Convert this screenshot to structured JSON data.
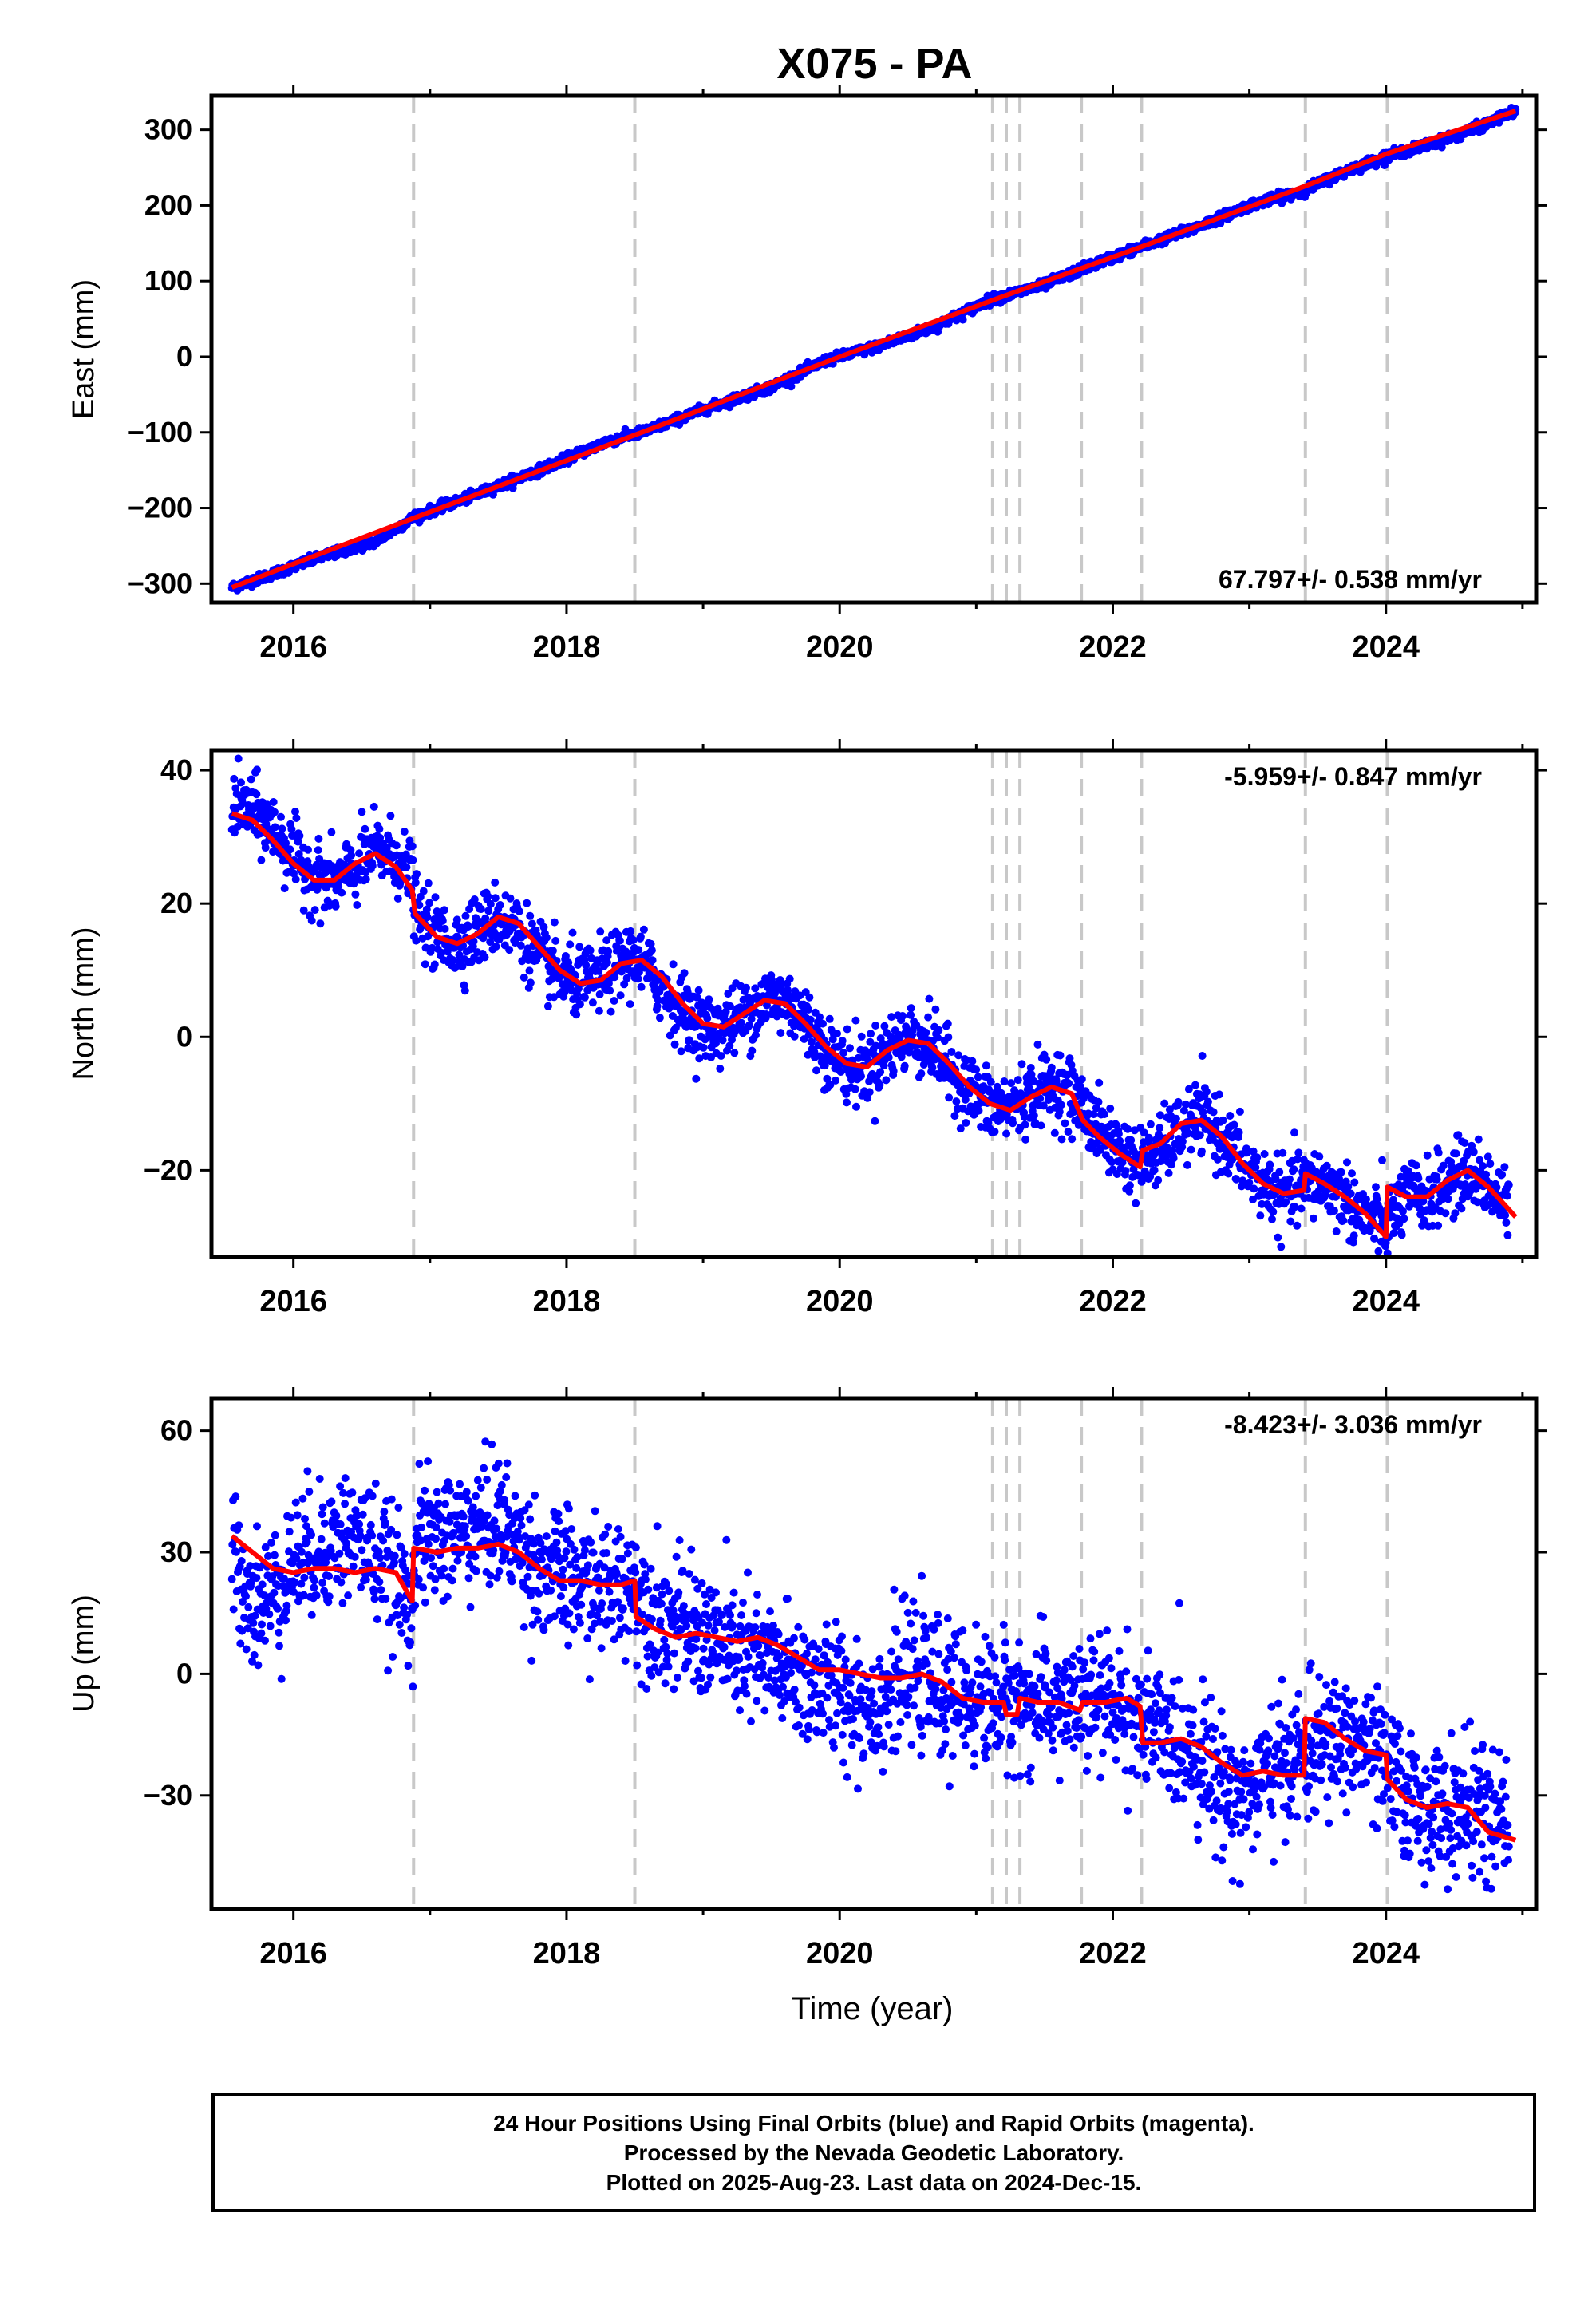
{
  "title": "X075 - PA",
  "colors": {
    "points": "#0000ff",
    "model": "#ff0000",
    "events": "#c8c8c8",
    "frame": "#000000"
  },
  "chart_data": [
    {
      "type": "scatter",
      "panel": "east",
      "title": "X075 - PA",
      "xlabel": "",
      "ylabel": "East (mm)",
      "xlim": [
        2015.4,
        2025.1
      ],
      "ylim": [
        -325,
        345
      ],
      "x_ticks": [
        2016,
        2018,
        2020,
        2022,
        2024
      ],
      "y_ticks": [
        -300,
        -200,
        -100,
        0,
        100,
        200,
        300
      ],
      "y_tick_labels": [
        "−300",
        "−200",
        "−100",
        "0",
        "100",
        "200",
        "300"
      ],
      "rate_label": "67.797+/- 0.538 mm/yr",
      "rate_position": "bottom-right",
      "series": [
        {
          "role": "observed",
          "color": "#0000ff",
          "scatter": 3,
          "x": [
            2015.55,
            2015.8,
            2016.2,
            2016.6,
            2016.9,
            2017.3,
            2017.8,
            2018.3,
            2018.6,
            2019.0,
            2019.5,
            2019.9,
            2020.3,
            2020.7,
            2021.1,
            2021.5,
            2021.8,
            2022.2,
            2022.6,
            2023.0,
            2023.4,
            2023.7,
            2024.0,
            2024.4,
            2024.7,
            2024.95
          ],
          "y": [
            -305,
            -290,
            -265,
            -245,
            -210,
            -185,
            -150,
            -112,
            -97,
            -70,
            -40,
            -5,
            15,
            40,
            75,
            95,
            118,
            145,
            170,
            200,
            220,
            245,
            265,
            285,
            305,
            325
          ]
        }
      ],
      "model": {
        "x": [
          2015.55,
          2016.9,
          2018.55,
          2020.0,
          2021.2,
          2022.25,
          2023.4,
          2024.0,
          2024.95
        ],
        "y": [
          -305,
          -212,
          -100,
          0,
          80,
          148,
          225,
          268,
          325
        ]
      },
      "events": [
        2016.88,
        2018.5,
        2021.12,
        2021.22,
        2021.32,
        2021.77,
        2022.21,
        2023.41,
        2024.01
      ]
    },
    {
      "type": "scatter",
      "panel": "north",
      "title": "",
      "xlabel": "",
      "ylabel": "North (mm)",
      "xlim": [
        2015.4,
        2025.1
      ],
      "ylim": [
        -33,
        43
      ],
      "x_ticks": [
        2016,
        2018,
        2020,
        2022,
        2024
      ],
      "y_ticks": [
        -20,
        0,
        20,
        40
      ],
      "y_tick_labels": [
        "−20",
        "0",
        "20",
        "40"
      ],
      "rate_label": "-5.959+/- 0.847 mm/yr",
      "rate_position": "top-right",
      "series": [
        {
          "role": "observed",
          "color": "#0000ff",
          "scatter": 2.6,
          "x": [
            2015.55,
            2015.7,
            2015.85,
            2016.0,
            2016.15,
            2016.3,
            2016.45,
            2016.6,
            2016.75,
            2016.87,
            2016.9,
            2017.05,
            2017.2,
            2017.35,
            2017.5,
            2017.65,
            2017.8,
            2017.95,
            2018.1,
            2018.25,
            2018.4,
            2018.5,
            2018.6,
            2018.75,
            2018.9,
            2019.05,
            2019.2,
            2019.35,
            2019.5,
            2019.65,
            2019.8,
            2019.95,
            2020.1,
            2020.25,
            2020.4,
            2020.55,
            2020.7,
            2020.85,
            2021.0,
            2021.15,
            2021.3,
            2021.45,
            2021.6,
            2021.75,
            2021.9,
            2022.05,
            2022.2,
            2022.35,
            2022.5,
            2022.65,
            2022.8,
            2022.95,
            2023.1,
            2023.25,
            2023.4,
            2023.55,
            2023.7,
            2023.85,
            2024.0,
            2024.15,
            2024.3,
            2024.45,
            2024.6,
            2024.75,
            2024.9
          ],
          "y": [
            35,
            34,
            31,
            27,
            24,
            23,
            25,
            28,
            27,
            24,
            18,
            15,
            14,
            16,
            18,
            16,
            12,
            9,
            8,
            9,
            11,
            12,
            10,
            6,
            3,
            1,
            2,
            4,
            6,
            5,
            1,
            -3,
            -5,
            -4,
            -1,
            0,
            -2,
            -6,
            -9,
            -11,
            -10,
            -8,
            -7,
            -10,
            -14,
            -17,
            -19,
            -17,
            -14,
            -12,
            -15,
            -19,
            -22,
            -24,
            -22,
            -22,
            -24,
            -27,
            -28,
            -24,
            -24,
            -22,
            -20,
            -22,
            -26
          ]
        }
      ],
      "model": {
        "x": [
          2015.55,
          2015.7,
          2015.85,
          2016.0,
          2016.15,
          2016.3,
          2016.45,
          2016.6,
          2016.75,
          2016.87,
          2016.89,
          2017.05,
          2017.2,
          2017.35,
          2017.5,
          2017.65,
          2017.8,
          2017.95,
          2018.1,
          2018.25,
          2018.4,
          2018.55,
          2018.7,
          2018.85,
          2019.0,
          2019.15,
          2019.3,
          2019.45,
          2019.6,
          2019.75,
          2019.9,
          2020.05,
          2020.2,
          2020.35,
          2020.5,
          2020.65,
          2020.8,
          2020.95,
          2021.1,
          2021.25,
          2021.4,
          2021.55,
          2021.7,
          2021.77,
          2021.78,
          2021.9,
          2022.05,
          2022.2,
          2022.22,
          2022.35,
          2022.5,
          2022.65,
          2022.8,
          2022.95,
          2023.1,
          2023.25,
          2023.4,
          2023.41,
          2023.55,
          2023.7,
          2023.85,
          2024.0,
          2024.01,
          2024.15,
          2024.3,
          2024.45,
          2024.6,
          2024.75,
          2024.95
        ],
        "y": [
          33.5,
          32.5,
          29.5,
          26,
          23.5,
          23.5,
          26,
          27.5,
          25.5,
          22,
          18.5,
          15,
          14,
          15.5,
          18,
          17,
          13.5,
          10,
          8,
          8.5,
          11,
          11.5,
          9,
          5,
          2,
          1.5,
          3.5,
          5.5,
          5,
          2,
          -1.5,
          -4,
          -4.5,
          -2,
          -0.5,
          -1,
          -4,
          -7.5,
          -10,
          -11,
          -9,
          -7.5,
          -8.5,
          -12,
          -12.5,
          -15,
          -17.5,
          -19.5,
          -17,
          -16,
          -13,
          -12.5,
          -15,
          -19,
          -22,
          -23.5,
          -23,
          -20.5,
          -22,
          -24,
          -26.5,
          -30,
          -22.5,
          -24,
          -24,
          -21.5,
          -20,
          -22.5,
          -27
        ]
      },
      "events": [
        2016.88,
        2018.5,
        2021.12,
        2021.22,
        2021.32,
        2021.77,
        2022.21,
        2023.41,
        2024.01
      ]
    },
    {
      "type": "scatter",
      "panel": "up",
      "title": "",
      "xlabel": "Time (year)",
      "ylabel": "Up (mm)",
      "xlim": [
        2015.4,
        2025.1
      ],
      "ylim": [
        -58,
        68
      ],
      "x_ticks": [
        2016,
        2018,
        2020,
        2022,
        2024
      ],
      "y_ticks": [
        -30,
        0,
        30,
        60
      ],
      "y_tick_labels": [
        "−30",
        "0",
        "30",
        "60"
      ],
      "rate_label": "-8.423+/- 3.036 mm/yr",
      "rate_position": "top-right",
      "series": [
        {
          "role": "observed",
          "color": "#0000ff",
          "scatter": 8,
          "x": [
            2015.55,
            2015.7,
            2015.85,
            2016.0,
            2016.15,
            2016.3,
            2016.45,
            2016.6,
            2016.75,
            2016.87,
            2016.9,
            2017.05,
            2017.2,
            2017.35,
            2017.5,
            2017.65,
            2017.8,
            2017.95,
            2018.1,
            2018.25,
            2018.4,
            2018.5,
            2018.6,
            2018.75,
            2018.9,
            2019.05,
            2019.2,
            2019.35,
            2019.5,
            2019.65,
            2019.8,
            2019.95,
            2020.1,
            2020.25,
            2020.4,
            2020.55,
            2020.7,
            2020.85,
            2021.0,
            2021.15,
            2021.3,
            2021.45,
            2021.6,
            2021.75,
            2021.9,
            2022.05,
            2022.2,
            2022.35,
            2022.5,
            2022.65,
            2022.8,
            2022.95,
            2023.1,
            2023.25,
            2023.4,
            2023.55,
            2023.7,
            2023.85,
            2024.0,
            2024.15,
            2024.3,
            2024.45,
            2024.6,
            2024.75,
            2024.9
          ],
          "y": [
            30,
            18,
            20,
            28,
            30,
            33,
            34,
            30,
            22,
            18,
            32,
            33,
            35,
            36,
            38,
            32,
            26,
            24,
            22,
            21,
            22,
            22,
            16,
            13,
            11,
            9,
            6,
            4,
            2,
            0,
            -2,
            -4,
            -6,
            -8,
            -3,
            0,
            -4,
            -6,
            -6,
            -7,
            -6,
            -8,
            -7,
            -8,
            -7,
            -8,
            -12,
            -15,
            -17,
            -20,
            -28,
            -30,
            -26,
            -22,
            -20,
            -18,
            -16,
            -18,
            -24,
            -30,
            -33,
            -35,
            -32,
            -36,
            -38
          ]
        }
      ],
      "model": {
        "x": [
          2015.55,
          2015.7,
          2015.85,
          2016.0,
          2016.15,
          2016.3,
          2016.45,
          2016.6,
          2016.75,
          2016.87,
          2016.88,
          2017.05,
          2017.2,
          2017.35,
          2017.5,
          2017.65,
          2017.8,
          2017.95,
          2018.1,
          2018.25,
          2018.4,
          2018.5,
          2018.51,
          2018.65,
          2018.8,
          2018.95,
          2019.1,
          2019.25,
          2019.4,
          2019.55,
          2019.7,
          2019.85,
          2020.0,
          2020.15,
          2020.3,
          2020.45,
          2020.6,
          2020.75,
          2020.9,
          2021.05,
          2021.12,
          2021.2,
          2021.22,
          2021.3,
          2021.32,
          2021.45,
          2021.6,
          2021.76,
          2021.78,
          2021.95,
          2022.1,
          2022.2,
          2022.22,
          2022.35,
          2022.5,
          2022.65,
          2022.8,
          2022.95,
          2023.1,
          2023.25,
          2023.4,
          2023.41,
          2023.55,
          2023.7,
          2023.85,
          2024.0,
          2024.01,
          2024.15,
          2024.3,
          2024.45,
          2024.6,
          2024.75,
          2024.95
        ],
        "y": [
          34,
          30,
          26,
          25,
          26,
          26,
          25,
          26,
          25,
          18,
          31,
          30,
          31,
          31,
          32,
          30,
          26,
          23,
          23,
          22,
          22,
          23,
          14,
          11,
          9,
          10,
          9,
          8,
          9,
          7,
          4,
          1,
          1,
          0,
          -1,
          -1,
          0,
          -2,
          -6,
          -7,
          -7,
          -7,
          -10,
          -10,
          -6,
          -7,
          -7,
          -9,
          -7,
          -7,
          -6,
          -8,
          -17,
          -17,
          -16,
          -18,
          -22,
          -25,
          -24,
          -25,
          -25,
          -11,
          -12,
          -16,
          -19,
          -20,
          -26,
          -31,
          -33,
          -32,
          -33,
          -39,
          -41
        ]
      },
      "events": [
        2016.88,
        2018.5,
        2021.12,
        2021.22,
        2021.32,
        2021.77,
        2022.21,
        2023.41,
        2024.01
      ]
    }
  ],
  "footer": {
    "line1": "24 Hour Positions Using Final Orbits (blue) and Rapid Orbits (magenta).",
    "line2": "Processed by the Nevada Geodetic Laboratory.",
    "line3": "Plotted on 2025-Aug-23. Last data on 2024-Dec-15."
  }
}
